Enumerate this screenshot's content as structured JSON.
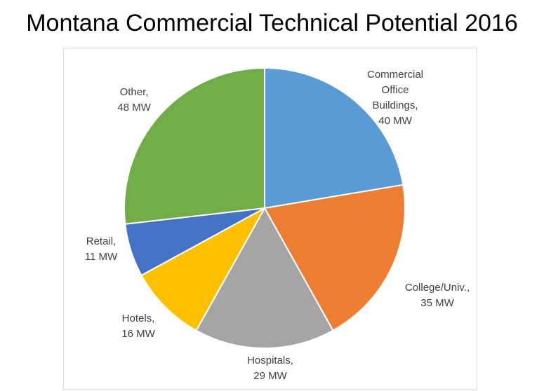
{
  "chart_data": {
    "type": "pie",
    "title": "Montana Commercial Technical Potential 2016",
    "unit": "MW",
    "slices": [
      {
        "name": "Commercial Office Buildings",
        "value": 40,
        "color": "#5b9bd5",
        "label_lines": [
          "Commercial",
          "Office",
          "Buildings,",
          "40 MW"
        ]
      },
      {
        "name": "College/Univ.",
        "value": 35,
        "color": "#ed7d31",
        "label_lines": [
          "College/Univ.,",
          "35 MW"
        ]
      },
      {
        "name": "Hospitals",
        "value": 29,
        "color": "#a5a5a5",
        "label_lines": [
          "Hospitals,",
          "29 MW"
        ]
      },
      {
        "name": "Hotels",
        "value": 16,
        "color": "#ffc000",
        "label_lines": [
          "Hotels,",
          "16 MW"
        ]
      },
      {
        "name": "Retail",
        "value": 11,
        "color": "#4472c4",
        "label_lines": [
          "Retail,",
          "11 MW"
        ]
      },
      {
        "name": "Other",
        "value": 48,
        "color": "#70ad47",
        "label_lines": [
          "Other,",
          "48 MW"
        ]
      }
    ]
  }
}
